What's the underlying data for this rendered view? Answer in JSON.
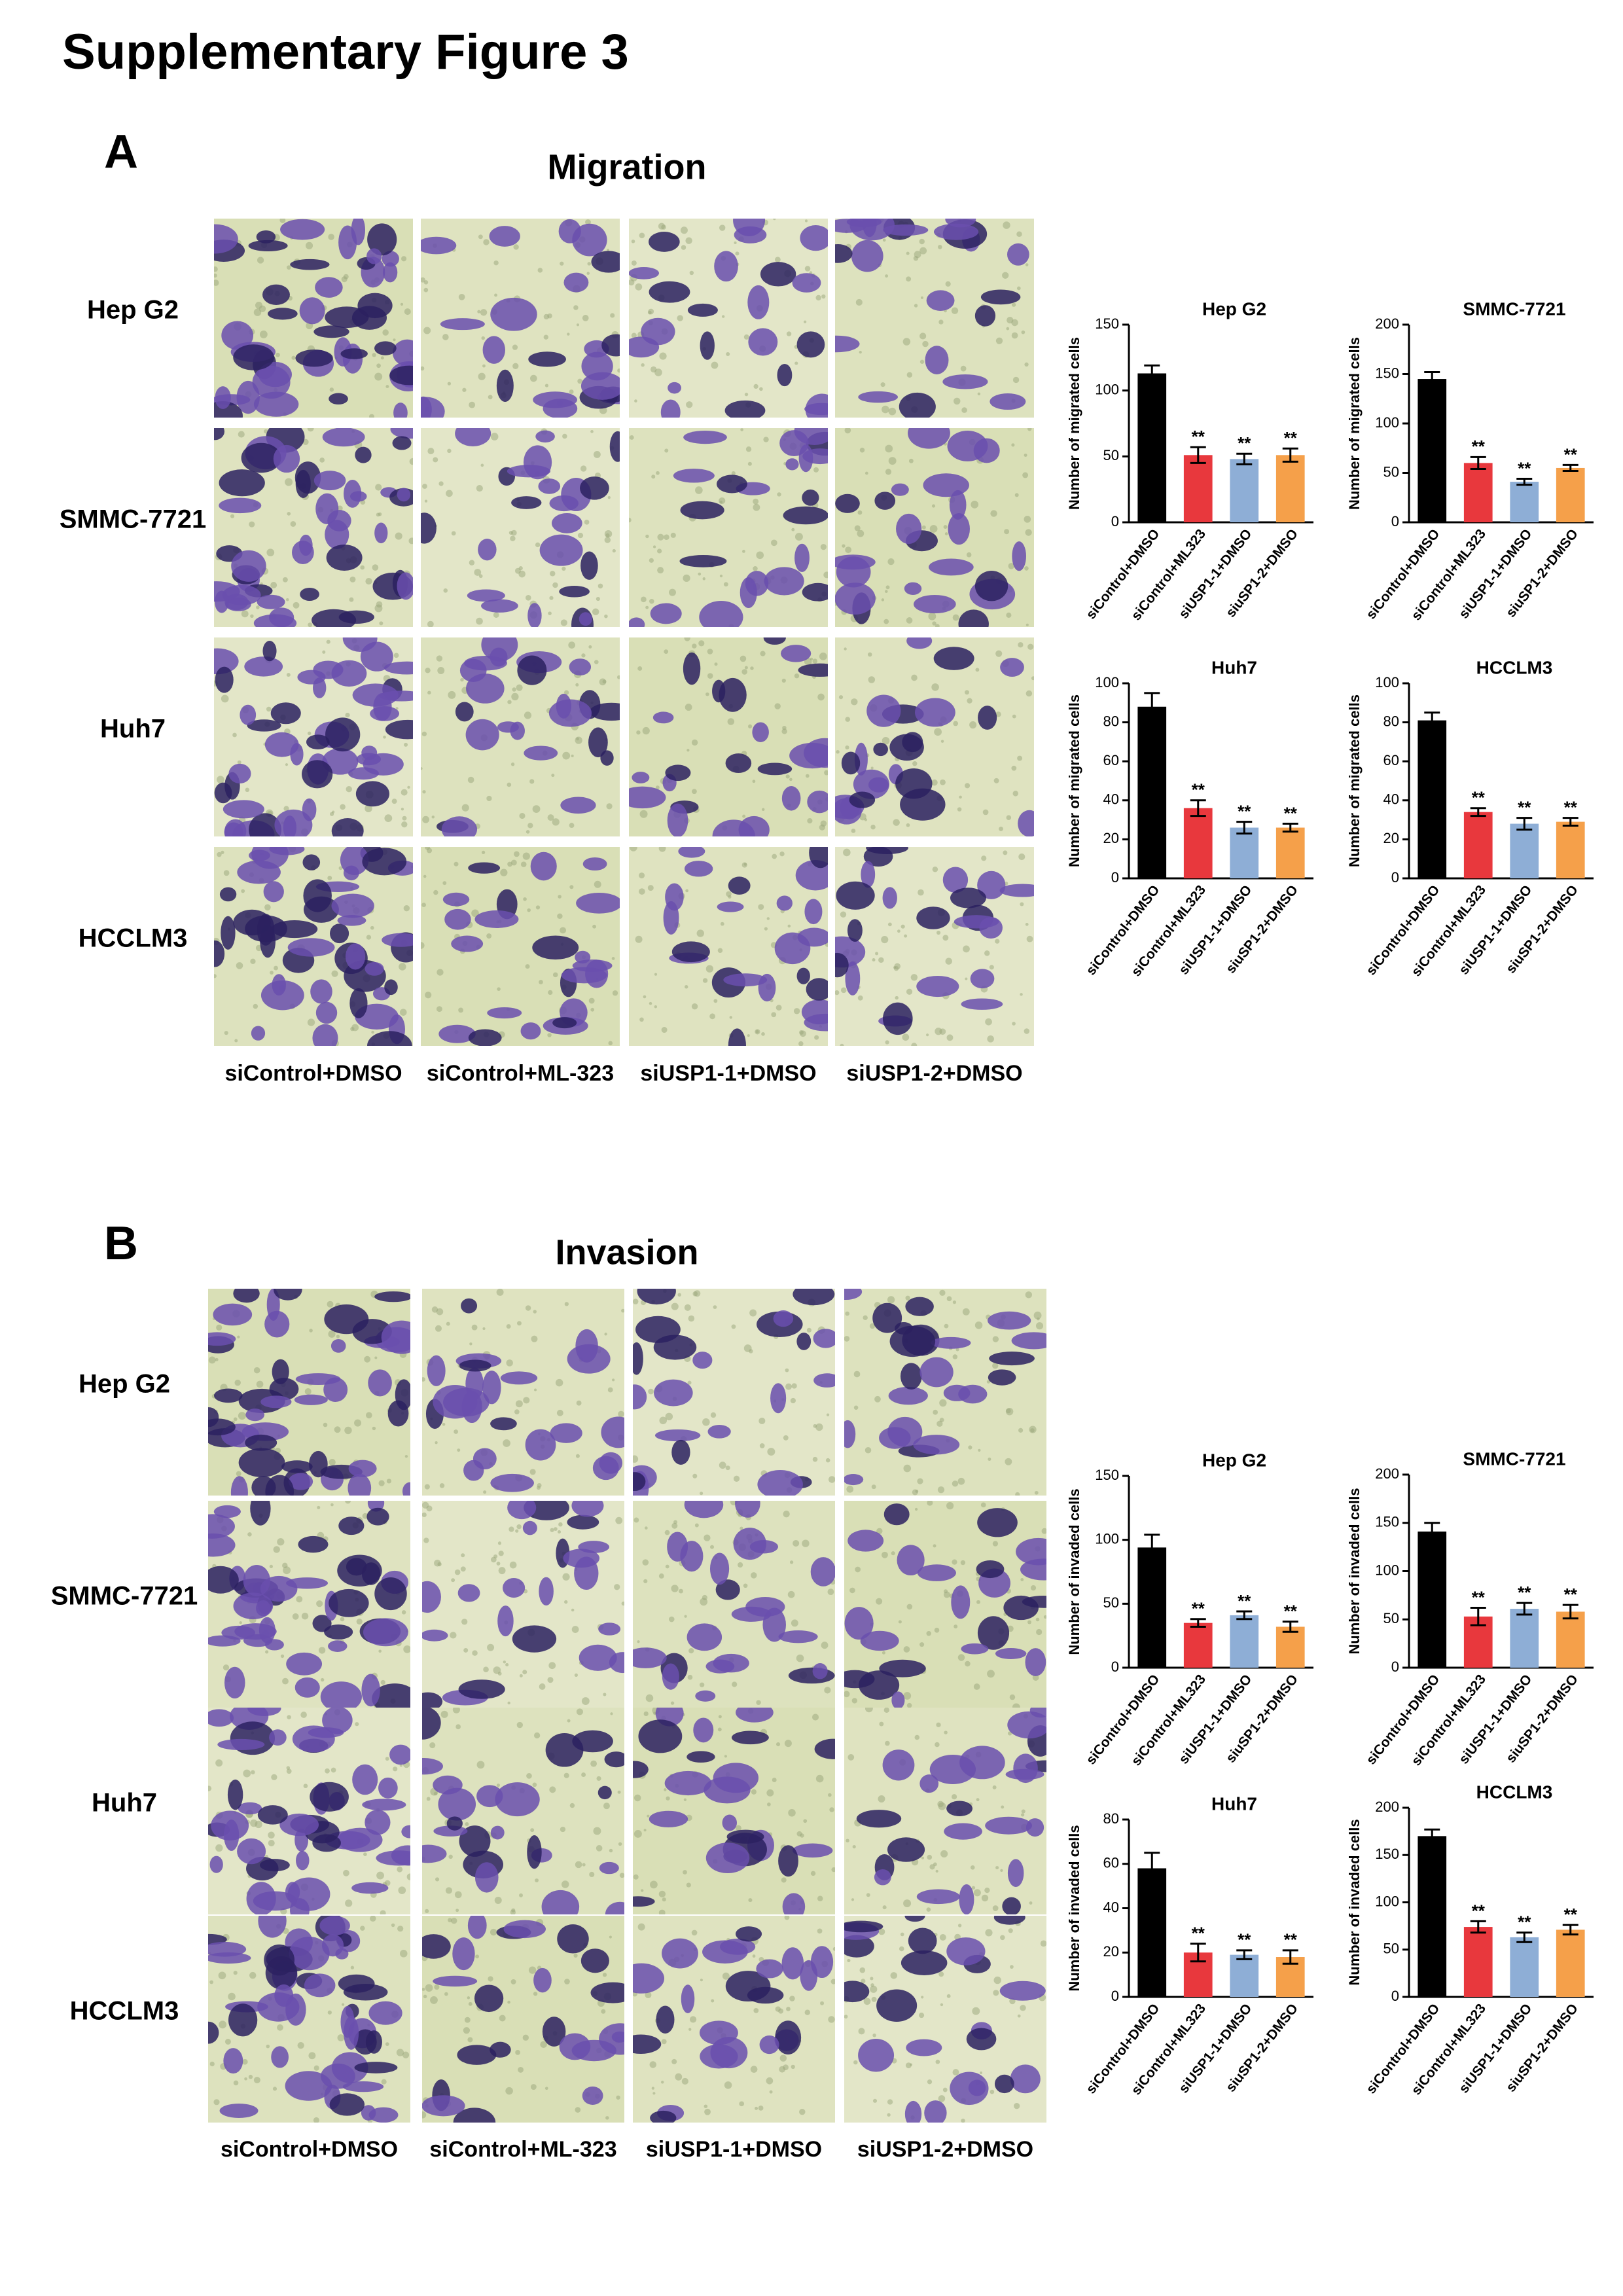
{
  "title": "Supplementary Figure 3",
  "panels": [
    {
      "label": "A",
      "title": "Migration",
      "row_labels": [
        "Hep G2",
        "SMMC-7721",
        "Huh7",
        "HCCLM3"
      ],
      "column_labels": [
        "siControl+DMSO",
        "siControl+ML-323",
        "siUSP1-1+DMSO",
        "siUSP1-2+DMSO"
      ]
    },
    {
      "label": "B",
      "title": "Invasion",
      "row_labels": [
        "Hep G2",
        "SMMC-7721",
        "Huh7",
        "HCCLM3"
      ],
      "column_labels": [
        "siControl+DMSO",
        "siControl+ML-323",
        "siUSP1-1+DMSO",
        "siUSP1-2+DMSO"
      ]
    }
  ],
  "chart_data": [
    {
      "type": "bar",
      "title": "Hep G2",
      "ylabel": "Number of migrated cells",
      "categories": [
        "siControl+DMSO",
        "siControl+ML323",
        "siUSP1-1+DMSO",
        "siuSP1-2+DMSO"
      ],
      "values": [
        113,
        51,
        48,
        51
      ],
      "errors": [
        6,
        6,
        4,
        5
      ],
      "annotations": [
        null,
        "**",
        "**",
        "**"
      ],
      "colors": [
        "#000000",
        "#e8383d",
        "#8eaed6",
        "#f5a04a"
      ],
      "ylim": [
        0,
        150
      ],
      "yticks": [
        0,
        50,
        100,
        150
      ]
    },
    {
      "type": "bar",
      "title": "SMMC-7721",
      "ylabel": "Number of migrated cells",
      "categories": [
        "siControl+DMSO",
        "siControl+ML323",
        "siUSP1-1+DMSO",
        "siuSP1-2+DMSO"
      ],
      "values": [
        145,
        60,
        41,
        55
      ],
      "errors": [
        7,
        6,
        3,
        3
      ],
      "annotations": [
        null,
        "**",
        "**",
        "**"
      ],
      "colors": [
        "#000000",
        "#e8383d",
        "#8eaed6",
        "#f5a04a"
      ],
      "ylim": [
        0,
        200
      ],
      "yticks": [
        0,
        50,
        100,
        150,
        200
      ]
    },
    {
      "type": "bar",
      "title": "Huh7",
      "ylabel": "Number of migrated cells",
      "categories": [
        "siControl+DMSO",
        "siControl+ML323",
        "siUSP1-1+DMSO",
        "siuSP1-2+DMSO"
      ],
      "values": [
        88,
        36,
        26,
        26
      ],
      "errors": [
        7,
        4,
        3,
        2
      ],
      "annotations": [
        null,
        "**",
        "**",
        "**"
      ],
      "colors": [
        "#000000",
        "#e8383d",
        "#8eaed6",
        "#f5a04a"
      ],
      "ylim": [
        0,
        100
      ],
      "yticks": [
        0,
        20,
        40,
        60,
        80,
        100
      ]
    },
    {
      "type": "bar",
      "title": "HCCLM3",
      "ylabel": "Number of migrated cells",
      "categories": [
        "siControl+DMSO",
        "siControl+ML323",
        "siUSP1-1+DMSO",
        "siuSP1-2+DMSO"
      ],
      "values": [
        81,
        34,
        28,
        29
      ],
      "errors": [
        4,
        2,
        3,
        2
      ],
      "annotations": [
        null,
        "**",
        "**",
        "**"
      ],
      "colors": [
        "#000000",
        "#e8383d",
        "#8eaed6",
        "#f5a04a"
      ],
      "ylim": [
        0,
        100
      ],
      "yticks": [
        0,
        20,
        40,
        60,
        80,
        100
      ]
    },
    {
      "type": "bar",
      "title": "Hep G2",
      "ylabel": "Number of invaded cells",
      "categories": [
        "siControl+DMSO",
        "siControl+ML323",
        "siUSP1-1+DMSO",
        "siuSP1-2+DMSO"
      ],
      "values": [
        94,
        35,
        41,
        32
      ],
      "errors": [
        10,
        3,
        3,
        4
      ],
      "annotations": [
        null,
        "**",
        "**",
        "**"
      ],
      "colors": [
        "#000000",
        "#e8383d",
        "#8eaed6",
        "#f5a04a"
      ],
      "ylim": [
        0,
        150
      ],
      "yticks": [
        0,
        50,
        100,
        150
      ]
    },
    {
      "type": "bar",
      "title": "SMMC-7721",
      "ylabel": "Number of invaded cells",
      "categories": [
        "siControl+DMSO",
        "siControl+ML323",
        "siUSP1-1+DMSO",
        "siuSP1-2+DMSO"
      ],
      "values": [
        141,
        53,
        61,
        58
      ],
      "errors": [
        9,
        9,
        6,
        7
      ],
      "annotations": [
        null,
        "**",
        "**",
        "**"
      ],
      "colors": [
        "#000000",
        "#e8383d",
        "#8eaed6",
        "#f5a04a"
      ],
      "ylim": [
        0,
        200
      ],
      "yticks": [
        0,
        50,
        100,
        150,
        200
      ]
    },
    {
      "type": "bar",
      "title": "Huh7",
      "ylabel": "Number of invaded cells",
      "categories": [
        "siControl+DMSO",
        "siControl+ML323",
        "siUSP1-1+DMSO",
        "siuSP1-2+DMSO"
      ],
      "values": [
        58,
        20,
        19,
        18
      ],
      "errors": [
        7,
        4,
        2,
        3
      ],
      "annotations": [
        null,
        "**",
        "**",
        "**"
      ],
      "colors": [
        "#000000",
        "#e8383d",
        "#8eaed6",
        "#f5a04a"
      ],
      "ylim": [
        0,
        80
      ],
      "yticks": [
        0,
        20,
        40,
        60,
        80
      ]
    },
    {
      "type": "bar",
      "title": "HCCLM3",
      "ylabel": "Number of invaded cells",
      "categories": [
        "siControl+DMSO",
        "siControl+ML323",
        "siUSP1-1+DMSO",
        "siuSP1-2+DMSO"
      ],
      "values": [
        170,
        74,
        63,
        71
      ],
      "errors": [
        7,
        6,
        5,
        5
      ],
      "annotations": [
        null,
        "**",
        "**",
        "**"
      ],
      "colors": [
        "#000000",
        "#e8383d",
        "#8eaed6",
        "#f5a04a"
      ],
      "ylim": [
        0,
        200
      ],
      "yticks": [
        0,
        50,
        100,
        150,
        200
      ]
    }
  ]
}
